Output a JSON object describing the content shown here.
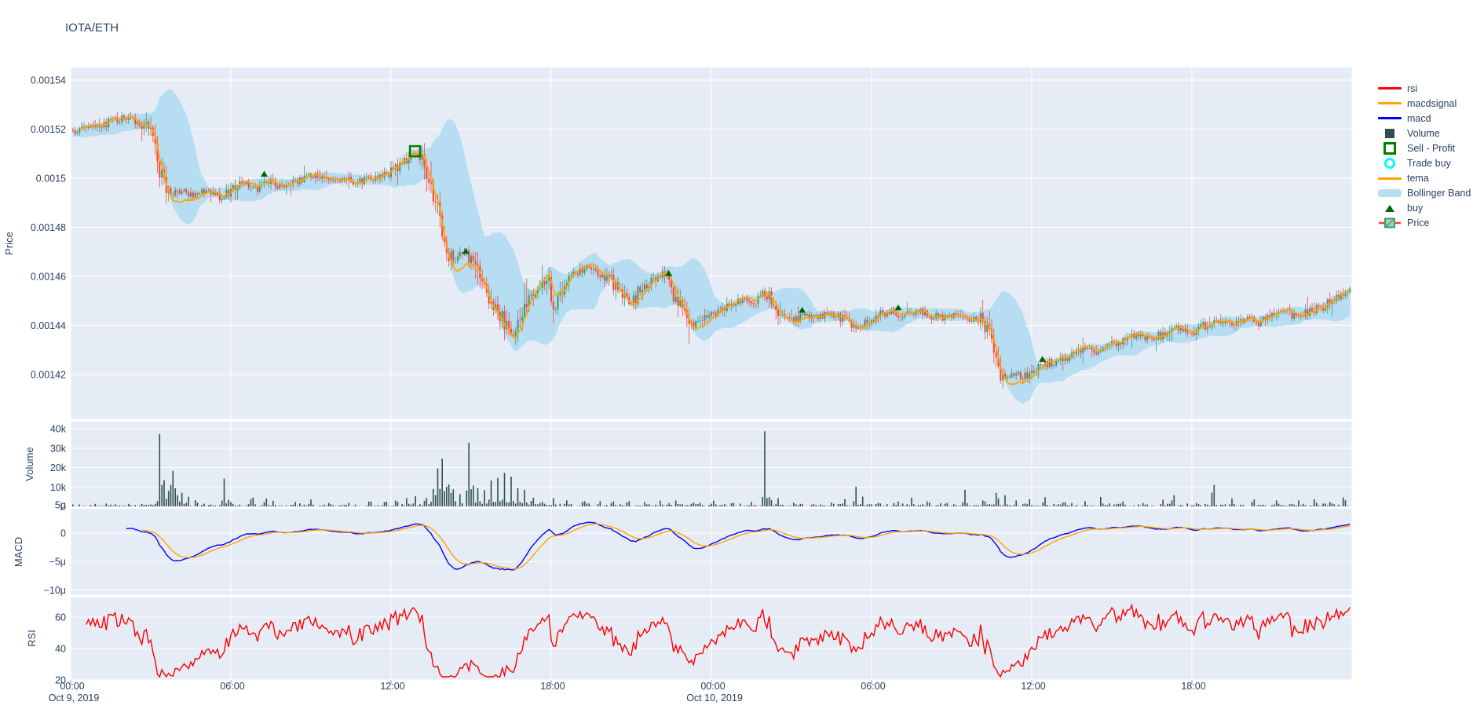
{
  "title": "IOTA/ETH",
  "colors": {
    "plot_bg": "#E5ECF6",
    "grid": "#ffffff",
    "text": "#2a3f5f",
    "candle_up": "#3D9970",
    "candle_down": "#FF4136",
    "bollinger": "#b7ddf2",
    "volume_bar": "#2F4F4F",
    "tema": "#FFA500",
    "macd": "#0000FF",
    "macdsignal": "#FFA500",
    "rsi": "#FF0000",
    "buy_marker": "#006400",
    "sell_marker": "#008000",
    "trade_buy_marker": "#00FFFF",
    "tick_mark": "#8fa0b8"
  },
  "legend": {
    "items": [
      {
        "id": "rsi",
        "label": "rsi",
        "swatch": "line",
        "color": "#FF0000"
      },
      {
        "id": "macdsignal",
        "label": "macdsignal",
        "swatch": "line",
        "color": "#FFA500"
      },
      {
        "id": "macd",
        "label": "macd",
        "swatch": "line",
        "color": "#0000FF"
      },
      {
        "id": "volume",
        "label": "Volume",
        "swatch": "square",
        "color": "#2F4F4F"
      },
      {
        "id": "sell-profit",
        "label": "Sell - Profit",
        "swatch": "open-square",
        "color": "#008000"
      },
      {
        "id": "trade-buy",
        "label": "Trade buy",
        "swatch": "open-circle",
        "color": "#00FFFF"
      },
      {
        "id": "tema",
        "label": "tema",
        "swatch": "line",
        "color": "#FFA500"
      },
      {
        "id": "bollinger-band",
        "label": "Bollinger Band",
        "swatch": "band",
        "color": "#b7ddf2"
      },
      {
        "id": "buy",
        "label": "buy",
        "swatch": "triangle",
        "color": "#006400"
      },
      {
        "id": "price",
        "label": "Price",
        "swatch": "candle",
        "color": "#3D9970"
      }
    ]
  },
  "axes": {
    "price": {
      "title": "Price",
      "ticks": [
        {
          "value": 0.00154,
          "label": "0.00154"
        },
        {
          "value": 0.00152,
          "label": "0.00152"
        },
        {
          "value": 0.0015,
          "label": "0.0015"
        },
        {
          "value": 0.00148,
          "label": "0.00148"
        },
        {
          "value": 0.00146,
          "label": "0.00146"
        },
        {
          "value": 0.00144,
          "label": "0.00144"
        },
        {
          "value": 0.00142,
          "label": "0.00142"
        }
      ]
    },
    "volume": {
      "title": "Volume",
      "ticks": [
        {
          "value": 40000,
          "label": "40k"
        },
        {
          "value": 30000,
          "label": "30k"
        },
        {
          "value": 20000,
          "label": "20k"
        },
        {
          "value": 10000,
          "label": "10k"
        },
        {
          "value": 0,
          "label": "0"
        }
      ]
    },
    "macd": {
      "title": "MACD",
      "ticks": [
        {
          "value": 5e-06,
          "label": "5μ"
        },
        {
          "value": 0,
          "label": "0"
        },
        {
          "value": -5e-06,
          "label": "−5μ"
        },
        {
          "value": -1e-05,
          "label": "−10μ"
        }
      ]
    },
    "rsi": {
      "title": "RSI",
      "ticks": [
        {
          "value": 60,
          "label": "60"
        },
        {
          "value": 40,
          "label": "40"
        },
        {
          "value": 20,
          "label": "20"
        }
      ]
    },
    "x": {
      "ticks": [
        {
          "t": 0,
          "label": "00:00",
          "date": "Oct 9, 2019"
        },
        {
          "t": 6,
          "label": "06:00"
        },
        {
          "t": 12,
          "label": "12:00"
        },
        {
          "t": 18,
          "label": "18:00"
        },
        {
          "t": 24,
          "label": "00:00",
          "date": "Oct 10, 2019"
        },
        {
          "t": 30,
          "label": "06:00"
        },
        {
          "t": 36,
          "label": "12:00"
        },
        {
          "t": 42,
          "label": "18:00"
        }
      ]
    }
  },
  "chart_data": {
    "type": "candlestick",
    "title": "IOTA/ETH",
    "x_start": "Oct 9, 2019 00:00",
    "x_range_hours": [
      0,
      48
    ],
    "bar_interval_minutes": 5,
    "panels": [
      {
        "name": "Price",
        "ylim": [
          0.001402,
          0.0015446
        ]
      },
      {
        "name": "Volume",
        "ylim": [
          0,
          43600
        ]
      },
      {
        "name": "MACD",
        "ylim": [
          -1.09e-05,
          4.3e-06
        ]
      },
      {
        "name": "RSI",
        "ylim": [
          20,
          72.8
        ]
      }
    ],
    "series": [
      {
        "name": "Price",
        "type": "candlestick"
      },
      {
        "name": "tema",
        "type": "line",
        "color": "#FFA500"
      },
      {
        "name": "Bollinger Band",
        "type": "band",
        "color": "#b7ddf2"
      },
      {
        "name": "Volume",
        "type": "bar",
        "color": "#2F4F4F"
      },
      {
        "name": "macd",
        "type": "line",
        "color": "#0000FF"
      },
      {
        "name": "macdsignal",
        "type": "line",
        "color": "#FFA500"
      },
      {
        "name": "rsi",
        "type": "line",
        "color": "#FF0000"
      }
    ],
    "price_path_anchors": [
      [
        -2,
        0.001518
      ],
      [
        -1,
        0.0015185
      ],
      [
        0,
        0.001519
      ],
      [
        0.5,
        0.00152
      ],
      [
        1,
        0.001521
      ],
      [
        1.5,
        0.001523
      ],
      [
        2,
        0.001525
      ],
      [
        2.3,
        0.001524
      ],
      [
        2.7,
        0.001522
      ],
      [
        3,
        0.001519
      ],
      [
        3.2,
        0.001512
      ],
      [
        3.4,
        0.0015
      ],
      [
        3.7,
        0.001494
      ],
      [
        4.2,
        0.001495
      ],
      [
        4.7,
        0.001493
      ],
      [
        5.2,
        0.001495
      ],
      [
        5.6,
        0.001492
      ],
      [
        6,
        0.001495
      ],
      [
        6.5,
        0.001498
      ],
      [
        7,
        0.001496
      ],
      [
        7.3,
        0.0015
      ],
      [
        7.7,
        0.001497
      ],
      [
        8.2,
        0.001498
      ],
      [
        8.7,
        0.0015
      ],
      [
        9.2,
        0.001501
      ],
      [
        9.7,
        0.001499
      ],
      [
        10.2,
        0.0015
      ],
      [
        10.7,
        0.001498
      ],
      [
        11.2,
        0.0015
      ],
      [
        11.7,
        0.001501
      ],
      [
        12.1,
        0.001503
      ],
      [
        12.5,
        0.001507
      ],
      [
        12.9,
        0.001511
      ],
      [
        13.2,
        0.001508
      ],
      [
        13.5,
        0.001498
      ],
      [
        13.8,
        0.001484
      ],
      [
        14.1,
        0.00147
      ],
      [
        14.4,
        0.001466
      ],
      [
        14.7,
        0.00147
      ],
      [
        15,
        0.001467
      ],
      [
        15.3,
        0.001461
      ],
      [
        15.7,
        0.00145
      ],
      [
        16,
        0.001446
      ],
      [
        16.3,
        0.00144
      ],
      [
        16.6,
        0.001436
      ],
      [
        16.9,
        0.001444
      ],
      [
        17.2,
        0.00145
      ],
      [
        17.6,
        0.001457
      ],
      [
        17.9,
        0.00146
      ],
      [
        18.1,
        0.001445
      ],
      [
        18.5,
        0.001459
      ],
      [
        19,
        0.001462
      ],
      [
        19.4,
        0.001464
      ],
      [
        19.8,
        0.001461
      ],
      [
        20.2,
        0.001459
      ],
      [
        20.6,
        0.001453
      ],
      [
        21,
        0.001449
      ],
      [
        21.4,
        0.001455
      ],
      [
        21.8,
        0.001459
      ],
      [
        22.2,
        0.001461
      ],
      [
        22.6,
        0.001452
      ],
      [
        23,
        0.001446
      ],
      [
        23.3,
        0.00144
      ],
      [
        23.8,
        0.001443
      ],
      [
        24.3,
        0.001446
      ],
      [
        24.8,
        0.001449
      ],
      [
        25.2,
        0.001451
      ],
      [
        25.6,
        0.001449
      ],
      [
        25.9,
        0.001453
      ],
      [
        26.2,
        0.001451
      ],
      [
        26.5,
        0.001445
      ],
      [
        27,
        0.001442
      ],
      [
        27.5,
        0.001444
      ],
      [
        28,
        0.001443
      ],
      [
        28.5,
        0.001445
      ],
      [
        29,
        0.001442
      ],
      [
        29.4,
        0.001439
      ],
      [
        29.8,
        0.001441
      ],
      [
        30.2,
        0.001444
      ],
      [
        30.7,
        0.001446
      ],
      [
        31.2,
        0.001444
      ],
      [
        31.7,
        0.001446
      ],
      [
        32.2,
        0.001444
      ],
      [
        32.7,
        0.001443
      ],
      [
        33.2,
        0.001445
      ],
      [
        33.7,
        0.001442
      ],
      [
        34.1,
        0.001443
      ],
      [
        34.4,
        0.001437
      ],
      [
        34.7,
        0.001424
      ],
      [
        35,
        0.001418
      ],
      [
        35.3,
        0.001421
      ],
      [
        35.7,
        0.001419
      ],
      [
        36.1,
        0.001422
      ],
      [
        36.5,
        0.001424
      ],
      [
        37,
        0.001426
      ],
      [
        37.5,
        0.001428
      ],
      [
        38,
        0.001431
      ],
      [
        38.5,
        0.001429
      ],
      [
        39,
        0.001432
      ],
      [
        39.5,
        0.001434
      ],
      [
        40,
        0.001436
      ],
      [
        40.5,
        0.001434
      ],
      [
        41,
        0.001437
      ],
      [
        41.5,
        0.001439
      ],
      [
        42,
        0.001437
      ],
      [
        42.5,
        0.00144
      ],
      [
        43,
        0.001442
      ],
      [
        43.5,
        0.00144
      ],
      [
        44,
        0.001443
      ],
      [
        44.5,
        0.001441
      ],
      [
        45,
        0.001444
      ],
      [
        45.5,
        0.001446
      ],
      [
        46,
        0.001443
      ],
      [
        46.5,
        0.001446
      ],
      [
        47,
        0.001448
      ],
      [
        47.5,
        0.001452
      ],
      [
        47.9,
        0.001454
      ]
    ],
    "volume_spikes": [
      [
        3.35,
        40000
      ],
      [
        3.5,
        12000
      ],
      [
        3.65,
        8000
      ],
      [
        3.8,
        24000
      ],
      [
        3.95,
        13000
      ],
      [
        4.15,
        7000
      ],
      [
        4.4,
        5000
      ],
      [
        4.7,
        3500
      ],
      [
        5.75,
        13500
      ],
      [
        5.95,
        4000
      ],
      [
        6.8,
        6500
      ],
      [
        7.3,
        4500
      ],
      [
        7.6,
        3000
      ],
      [
        8.4,
        2500
      ],
      [
        9,
        3500
      ],
      [
        9.7,
        2500
      ],
      [
        10.4,
        2000
      ],
      [
        11.2,
        3500
      ],
      [
        11.8,
        2500
      ],
      [
        12.2,
        3200
      ],
      [
        12.6,
        4200
      ],
      [
        12.9,
        5500
      ],
      [
        13.3,
        4500
      ],
      [
        13.6,
        9000
      ],
      [
        13.75,
        19000
      ],
      [
        13.9,
        25500
      ],
      [
        14.05,
        12500
      ],
      [
        14.2,
        14000
      ],
      [
        14.35,
        9500
      ],
      [
        14.6,
        6500
      ],
      [
        14.9,
        35500
      ],
      [
        15.05,
        15000
      ],
      [
        15.25,
        9000
      ],
      [
        15.5,
        7000
      ],
      [
        15.75,
        13000
      ],
      [
        16,
        14000
      ],
      [
        16.25,
        15500
      ],
      [
        16.5,
        15000
      ],
      [
        16.75,
        8500
      ],
      [
        17,
        7500
      ],
      [
        17.3,
        4500
      ],
      [
        17.7,
        3000
      ],
      [
        18.1,
        3500
      ],
      [
        18.6,
        2500
      ],
      [
        19.2,
        3000
      ],
      [
        19.8,
        2000
      ],
      [
        20.3,
        3500
      ],
      [
        20.9,
        2500
      ],
      [
        21.5,
        2000
      ],
      [
        22.1,
        3000
      ],
      [
        22.7,
        2500
      ],
      [
        23.3,
        2000
      ],
      [
        24.1,
        1800
      ],
      [
        24.8,
        2200
      ],
      [
        25.5,
        1800
      ],
      [
        26,
        38500
      ],
      [
        26.2,
        6000
      ],
      [
        26.5,
        3500
      ],
      [
        27.1,
        2000
      ],
      [
        27.8,
        1600
      ],
      [
        28.5,
        1800
      ],
      [
        29,
        2500
      ],
      [
        29.4,
        11000
      ],
      [
        29.65,
        4500
      ],
      [
        30.3,
        2000
      ],
      [
        31,
        2500
      ],
      [
        31.5,
        4500
      ],
      [
        32.1,
        2200
      ],
      [
        32.8,
        2000
      ],
      [
        33.5,
        7500
      ],
      [
        34.2,
        2500
      ],
      [
        34.7,
        8500
      ],
      [
        35,
        5500
      ],
      [
        35.4,
        3000
      ],
      [
        35.9,
        4000
      ],
      [
        36.5,
        3500
      ],
      [
        37.2,
        2800
      ],
      [
        38,
        2500
      ],
      [
        38.6,
        5000
      ],
      [
        39.4,
        2200
      ],
      [
        40.2,
        2000
      ],
      [
        40.9,
        3500
      ],
      [
        41.3,
        6500
      ],
      [
        42.2,
        2200
      ],
      [
        42.8,
        15500
      ],
      [
        43.5,
        3200
      ],
      [
        44.3,
        4200
      ],
      [
        45.2,
        2600
      ],
      [
        46,
        3000
      ],
      [
        46.6,
        3800
      ],
      [
        47.2,
        3200
      ],
      [
        47.7,
        6000
      ]
    ],
    "markers": {
      "buy": [
        [
          7.25,
          0.0015005
        ],
        [
          14.8,
          0.001469
        ],
        [
          22.4,
          0.00146
        ],
        [
          27.4,
          0.001445
        ],
        [
          31,
          0.001446
        ],
        [
          36.4,
          0.001425
        ]
      ],
      "sell_profit": [
        [
          12.9,
          0.001511
        ]
      ],
      "trade_buy": []
    },
    "indicators": {
      "tema_period": 14,
      "bollinger_period": 20,
      "bollinger_std": 2,
      "macd_fast": 12,
      "macd_slow": 26,
      "macd_signal": 9,
      "macd_plot_scale": 0.65,
      "rsi_period": 14
    },
    "legend_position": "right",
    "grid": true
  }
}
